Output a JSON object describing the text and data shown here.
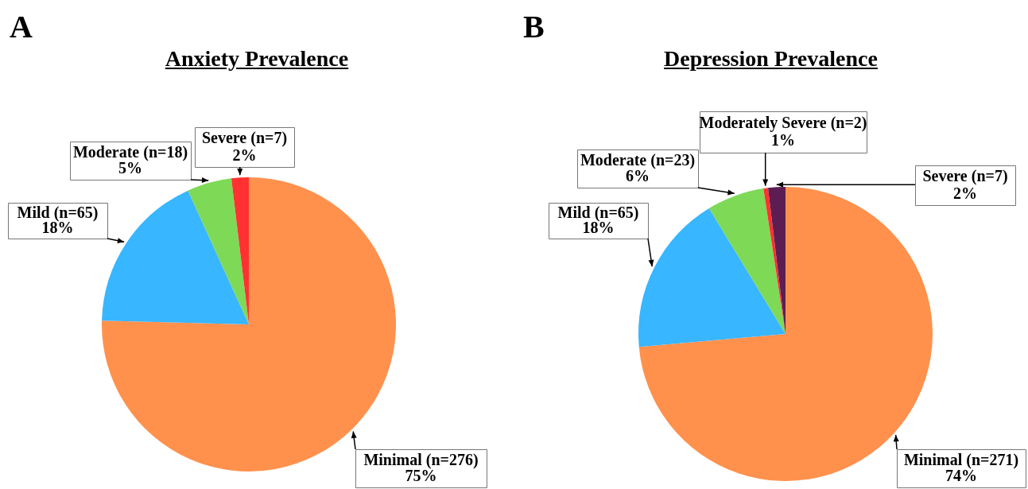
{
  "chart_data": [
    {
      "type": "pie",
      "title": "Anxiety Prevalence",
      "annotations": [
        "A"
      ],
      "legend": false,
      "categories": [
        "Minimal (n=276)",
        "Mild (n=65)",
        "Moderate (n=18)",
        "Severe (n=7)"
      ],
      "values": [
        75.4,
        17.8,
        4.9,
        1.9
      ],
      "value_labels": [
        "75%",
        "18%",
        "5%",
        "2%"
      ],
      "colors": [
        "#ff914d",
        "#38b6ff",
        "#7ed957",
        "#ff3131"
      ]
    },
    {
      "type": "pie",
      "title": "Depression Prevalence",
      "annotations": [
        "B"
      ],
      "legend": false,
      "categories": [
        "Minimal (n=271)",
        "Mild (n=65)",
        "Moderate (n=23)",
        "Moderately Severe (n=2)",
        "Severe (n=7)"
      ],
      "values": [
        73.6,
        17.7,
        6.3,
        0.5,
        1.9
      ],
      "value_labels": [
        "74%",
        "18%",
        "6%",
        "1%",
        "2%"
      ],
      "colors": [
        "#ff914d",
        "#38b6ff",
        "#7ed957",
        "#ff3131",
        "#5e1d52"
      ]
    }
  ]
}
